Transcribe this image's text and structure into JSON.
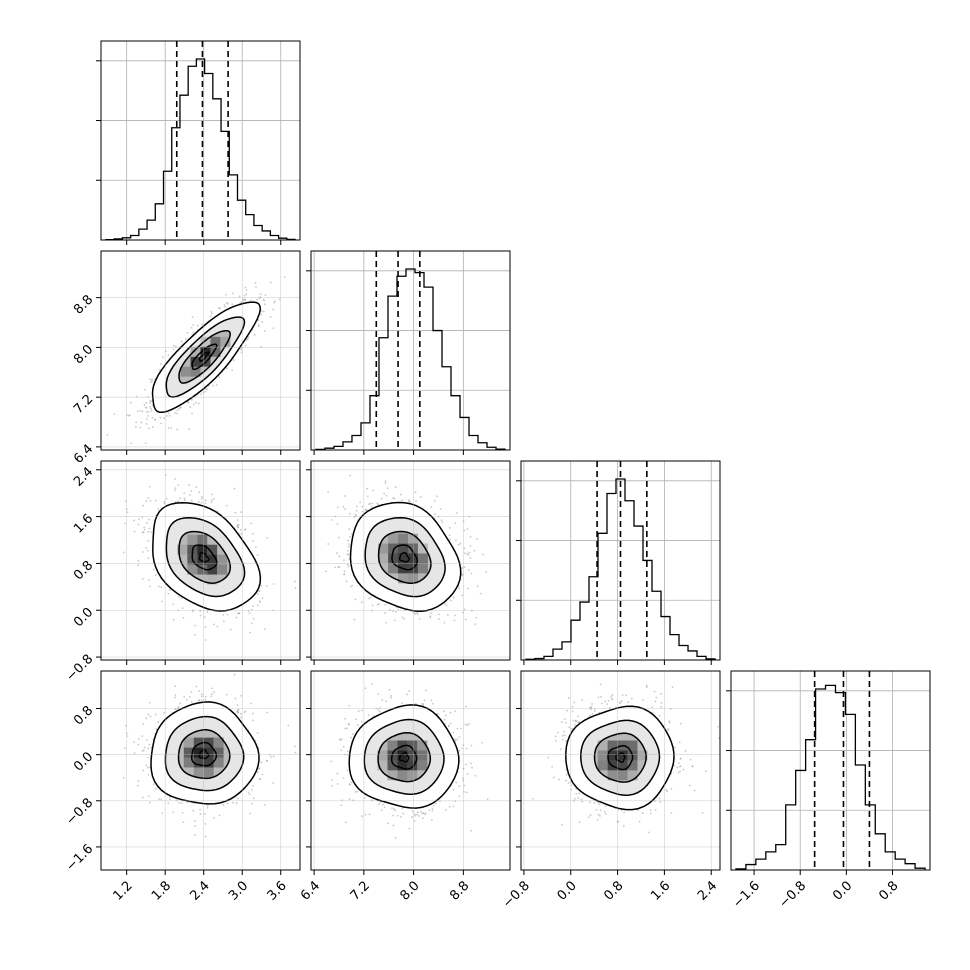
{
  "chart_data": {
    "type": "corner",
    "grid": true,
    "variables": [
      {
        "id": "p0",
        "range": [
          0.8,
          3.9
        ],
        "ticks": [
          "1.2",
          "1.8",
          "2.4",
          "3.0",
          "3.6"
        ],
        "quantiles": [
          1.98,
          2.38,
          2.78
        ],
        "hist": [
          0.002,
          0.006,
          0.012,
          0.025,
          0.06,
          0.11,
          0.2,
          0.38,
          0.62,
          0.8,
          0.96,
          1.0,
          0.92,
          0.78,
          0.6,
          0.36,
          0.22,
          0.14,
          0.08,
          0.05,
          0.025,
          0.01,
          0.003
        ]
      },
      {
        "id": "p1",
        "range": [
          6.35,
          9.55
        ],
        "ticks": [
          "6.4",
          "7.2",
          "8.0",
          "8.8"
        ],
        "quantiles": [
          7.4,
          7.75,
          8.1
        ],
        "hist": [
          0.003,
          0.01,
          0.02,
          0.045,
          0.08,
          0.15,
          0.3,
          0.62,
          0.85,
          0.96,
          1.0,
          0.98,
          0.9,
          0.66,
          0.46,
          0.3,
          0.18,
          0.08,
          0.04,
          0.015,
          0.005
        ]
      },
      {
        "id": "p2",
        "range": [
          -0.85,
          2.55
        ],
        "ticks": [
          "-0.8",
          "0.0",
          "0.8",
          "1.6",
          "2.4"
        ],
        "quantiles": [
          0.45,
          0.85,
          1.3
        ],
        "hist": [
          0.004,
          0.008,
          0.02,
          0.06,
          0.1,
          0.22,
          0.32,
          0.46,
          0.7,
          0.92,
          1.0,
          0.88,
          0.74,
          0.55,
          0.38,
          0.24,
          0.14,
          0.08,
          0.05,
          0.02,
          0.006
        ]
      },
      {
        "id": "p3",
        "range": [
          -2.0,
          1.45
        ],
        "ticks": [
          "-1.6",
          "-0.8",
          "0.0",
          "0.8"
        ],
        "quantiles": [
          -0.55,
          -0.05,
          0.4
        ],
        "hist": [
          0.006,
          0.03,
          0.06,
          0.1,
          0.14,
          0.36,
          0.55,
          0.72,
          1.0,
          1.02,
          0.98,
          0.86,
          0.58,
          0.36,
          0.2,
          0.1,
          0.06,
          0.035,
          0.01
        ]
      }
    ],
    "pairs": [
      {
        "row": 1,
        "col": 0,
        "mean": [
          2.4,
          7.85
        ],
        "sd": [
          0.38,
          0.4
        ],
        "rho": 0.82,
        "peak": [
          2.35,
          7.85
        ]
      },
      {
        "row": 2,
        "col": 0,
        "mean": [
          2.4,
          0.9
        ],
        "sd": [
          0.38,
          0.42
        ],
        "rho": -0.35,
        "peak": [
          2.3,
          0.95
        ]
      },
      {
        "row": 2,
        "col": 1,
        "mean": [
          7.85,
          0.9
        ],
        "sd": [
          0.4,
          0.42
        ],
        "rho": -0.2,
        "peak": [
          7.75,
          0.8
        ]
      },
      {
        "row": 3,
        "col": 0,
        "mean": [
          2.4,
          0.0
        ],
        "sd": [
          0.38,
          0.4
        ],
        "rho": 0.0,
        "peak": [
          2.4,
          -0.05
        ]
      },
      {
        "row": 3,
        "col": 1,
        "mean": [
          7.85,
          -0.05
        ],
        "sd": [
          0.4,
          0.4
        ],
        "rho": 0.0,
        "peak": [
          7.9,
          -0.1
        ]
      },
      {
        "row": 3,
        "col": 2,
        "mean": [
          0.85,
          -0.05
        ],
        "sd": [
          0.42,
          0.4
        ],
        "rho": 0.0,
        "peak": [
          0.8,
          -0.1
        ]
      }
    ]
  }
}
